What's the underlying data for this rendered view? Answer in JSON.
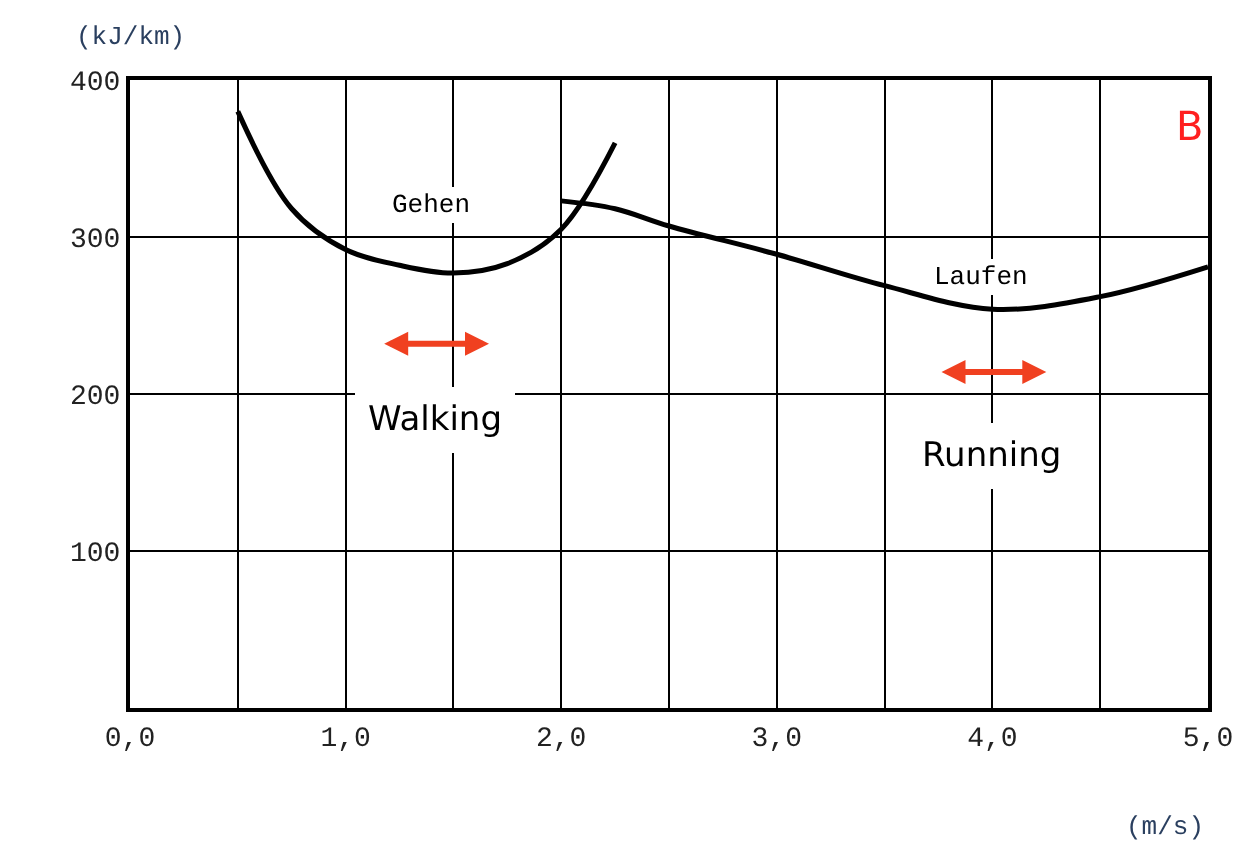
{
  "chart_data": {
    "type": "line",
    "xlabel": "(m/s)",
    "ylabel": "(kJ/km)",
    "series": [
      {
        "color": "#000000",
        "x": [
          0.5,
          0.75,
          1.0,
          1.25,
          1.5,
          1.75,
          2.0,
          2.25
        ],
        "values": [
          380,
          318,
          292,
          282,
          277,
          283,
          305,
          360
        ]
      },
      {
        "color": "#000000",
        "x": [
          2.0,
          2.25,
          2.5,
          3.0,
          3.5,
          4.0,
          4.5,
          5.0
        ],
        "values": [
          323,
          318,
          307,
          289,
          269,
          254,
          262,
          281
        ]
      }
    ],
    "xlim": [
      0,
      5
    ],
    "ylim": [
      0,
      400
    ],
    "xticks": [
      {
        "value": 0,
        "label": "0,0"
      },
      {
        "value": 0.5,
        "label": null
      },
      {
        "value": 1,
        "label": "1,0"
      },
      {
        "value": 1.5,
        "label": null
      },
      {
        "value": 2,
        "label": "2,0"
      },
      {
        "value": 2.5,
        "label": null
      },
      {
        "value": 3,
        "label": "3,0"
      },
      {
        "value": 3.5,
        "label": null
      },
      {
        "value": 4,
        "label": "4,0"
      },
      {
        "value": 4.5,
        "label": null
      },
      {
        "value": 5,
        "label": "5,0"
      }
    ],
    "yticks": [
      {
        "value": 0,
        "label": null
      },
      100,
      200,
      300,
      400
    ],
    "grid": true,
    "legend": false,
    "marker": "none",
    "line_style": "solid",
    "annotations": [
      "Gehen",
      "Laufen",
      "Walking",
      "Running",
      "B"
    ]
  }
}
